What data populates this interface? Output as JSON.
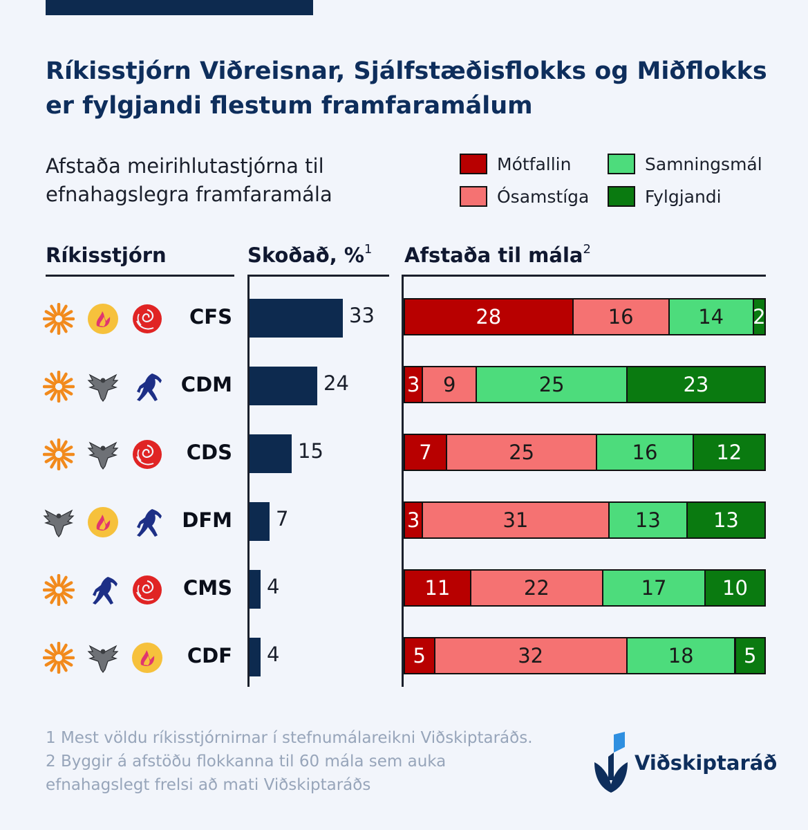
{
  "chart_data": {
    "type": "bar",
    "title": "Ríkisstjórn Viðreisnar, Sjálfstæðisflokks og Miðflokks er fylgjandi flestum framfaramálum",
    "subtitle": "Afstaða meirihlutastjórna til efnahagslegra framfaramála",
    "columns": {
      "coalition": "Ríkisstjórn",
      "reviewed": "Skoðað, %",
      "reviewed_sup": "1",
      "stance": "Afstaða til mála",
      "stance_sup": "2"
    },
    "categories": [
      "CFS",
      "CDM",
      "CDS",
      "DFM",
      "CMS",
      "CDF"
    ],
    "reviewed_pct": [
      33,
      24,
      15,
      7,
      4,
      4
    ],
    "reviewed_xlim": [
      0,
      33
    ],
    "stance_total": 60,
    "series": [
      {
        "name": "Mótfallin",
        "color": "#b80000",
        "text_color": "#ffffff",
        "values": [
          28,
          3,
          7,
          3,
          11,
          5
        ]
      },
      {
        "name": "Ósamstíga",
        "color": "#f57272",
        "text_color": "#1a1a1a",
        "values": [
          16,
          9,
          25,
          31,
          22,
          32
        ]
      },
      {
        "name": "Samningsmál",
        "color": "#4ddc7c",
        "text_color": "#1a1a1a",
        "values": [
          14,
          25,
          16,
          13,
          17,
          18
        ]
      },
      {
        "name": "Fylgjandi",
        "color": "#0a7a10",
        "text_color": "#ffffff",
        "values": [
          2,
          23,
          12,
          13,
          10,
          5
        ]
      }
    ],
    "legend_position": "top-right",
    "party_icons": [
      [
        "sun-icon",
        "flame-icon",
        "rose-icon"
      ],
      [
        "sun-icon",
        "falcon-icon",
        "horse-icon"
      ],
      [
        "sun-icon",
        "falcon-icon",
        "rose-icon"
      ],
      [
        "falcon-icon",
        "flame-icon",
        "horse-icon"
      ],
      [
        "sun-icon",
        "horse-icon",
        "rose-icon"
      ],
      [
        "sun-icon",
        "falcon-icon",
        "flame-icon"
      ]
    ]
  },
  "footnote": "1 Mest völdu ríkisstjórnirnar í stefnumálareikni Viðskiptaráðs. 2 Byggir á afstöðu flokkanna til 60 mála sem auka efnahagslegt frelsi að mati Viðskiptaráðs",
  "brand": {
    "name": "Viðskiptaráð",
    "color": "#0e2e5c",
    "accent": "#2f8fe0"
  }
}
